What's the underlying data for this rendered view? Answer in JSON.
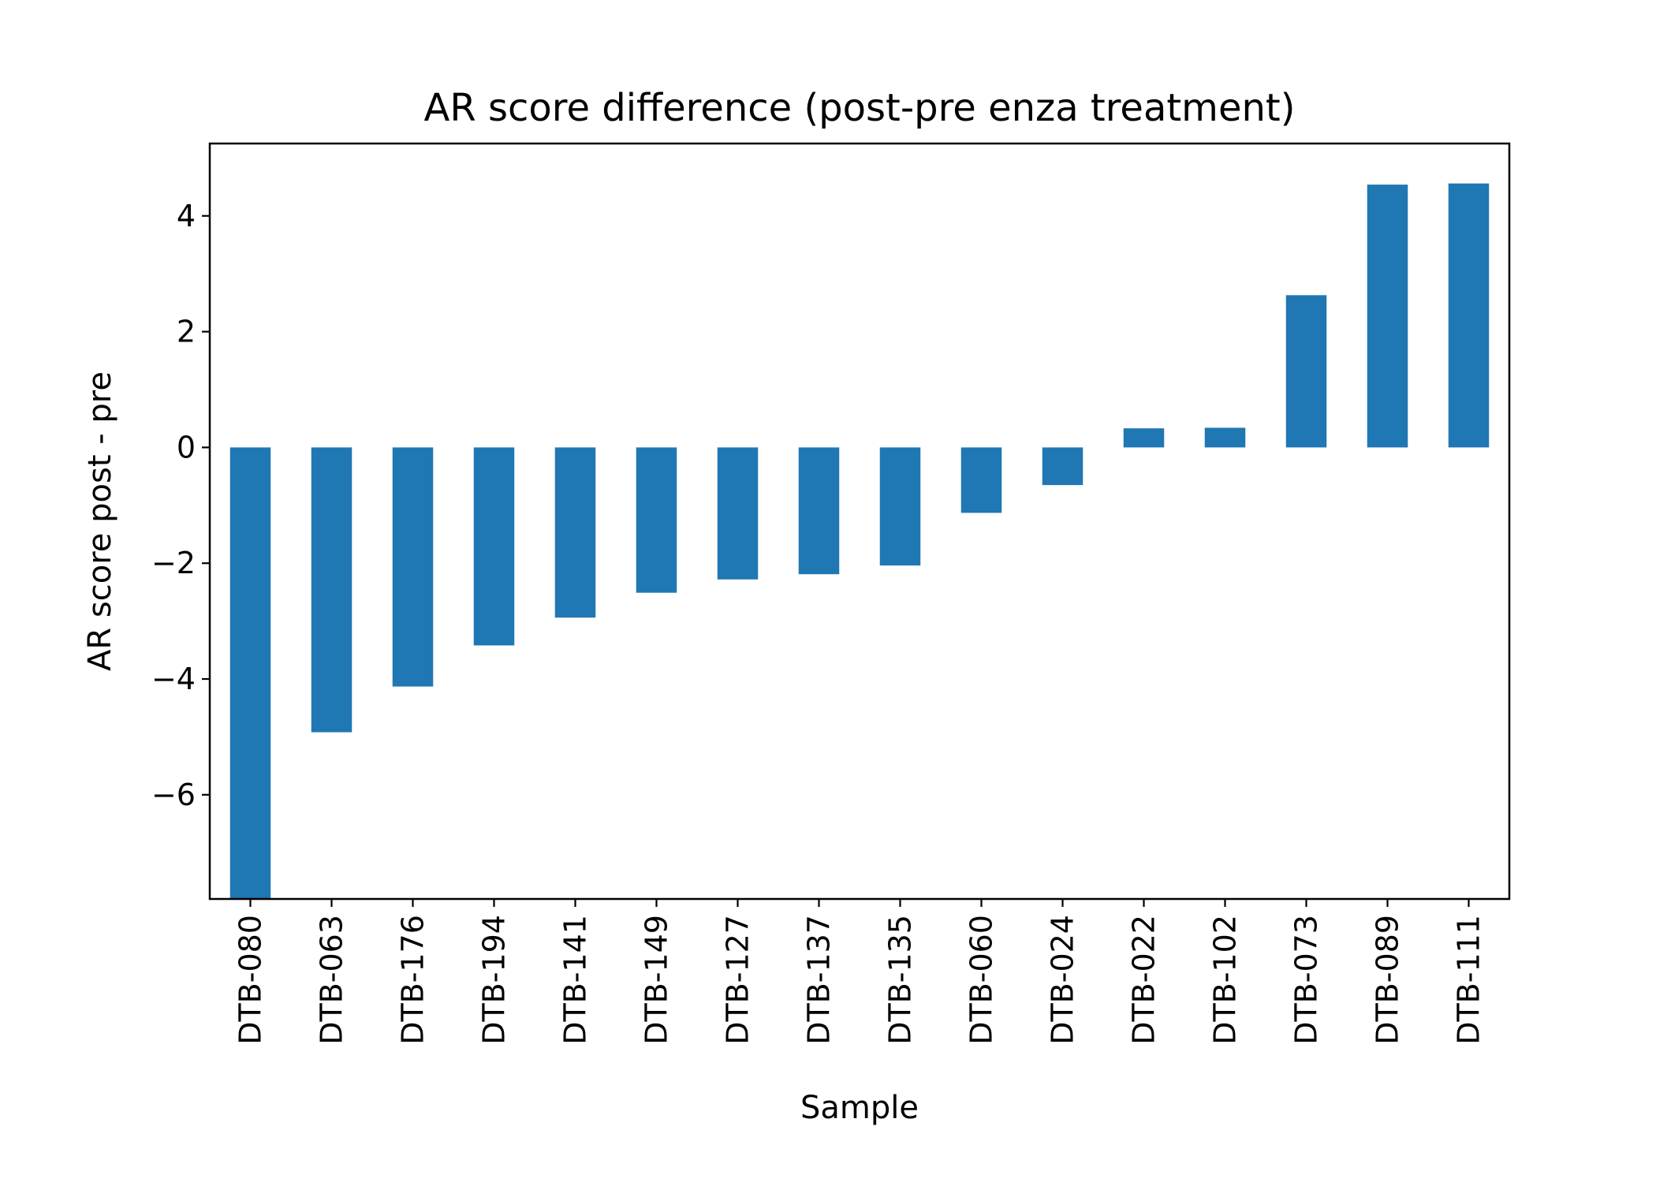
{
  "chart_data": {
    "type": "bar",
    "title": "AR score difference (post-pre enza treatment)",
    "xlabel": "Sample",
    "ylabel": "AR score post - pre",
    "categories": [
      "DTB-080",
      "DTB-063",
      "DTB-176",
      "DTB-194",
      "DTB-141",
      "DTB-149",
      "DTB-127",
      "DTB-137",
      "DTB-135",
      "DTB-060",
      "DTB-024",
      "DTB-022",
      "DTB-102",
      "DTB-073",
      "DTB-089",
      "DTB-111"
    ],
    "values": [
      -7.8,
      -4.92,
      -4.13,
      -3.42,
      -2.94,
      -2.51,
      -2.28,
      -2.19,
      -2.04,
      -1.13,
      -0.65,
      0.33,
      0.34,
      2.63,
      4.54,
      4.56
    ],
    "ylim": [
      -7.8,
      5.25
    ],
    "yticks": [
      -6,
      -4,
      -2,
      0,
      2,
      4
    ],
    "ytick_labels": [
      "−6",
      "−4",
      "−2",
      "0",
      "2",
      "4"
    ],
    "grid": false,
    "bar_color": "#1f77b4"
  }
}
